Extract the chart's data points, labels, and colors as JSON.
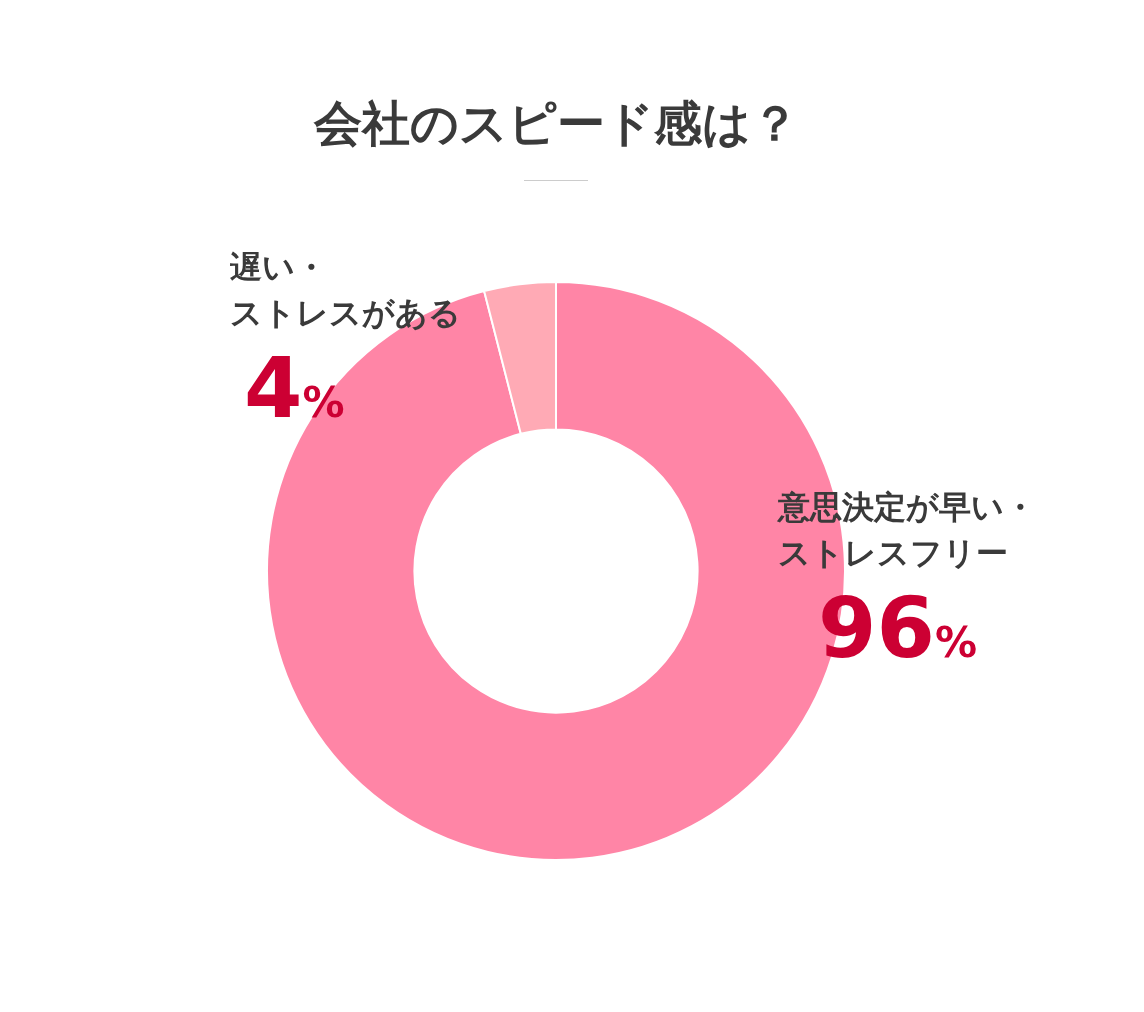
{
  "chart_data": {
    "type": "donut",
    "title": "会社のスピード感は？",
    "categories": [
      "意思決定が早い・ストレスフリー",
      "遅い・ストレスがある"
    ],
    "values": [
      96,
      4
    ],
    "colors": [
      "#ff85a6",
      "#ffaab5"
    ],
    "value_labels": [
      "96%",
      "4%"
    ],
    "legend": false
  }
}
